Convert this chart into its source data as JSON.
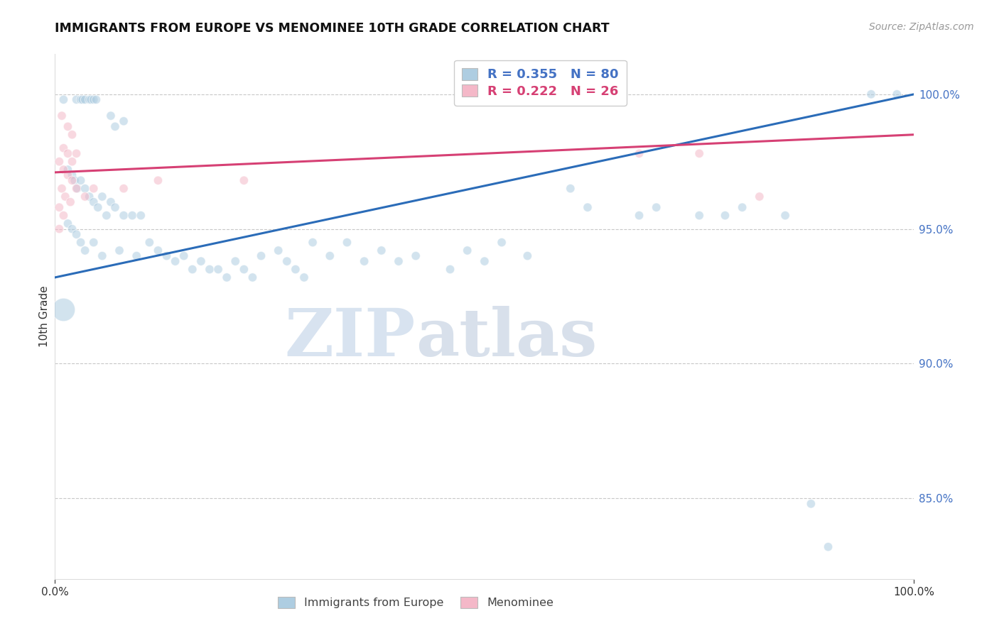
{
  "title": "IMMIGRANTS FROM EUROPE VS MENOMINEE 10TH GRADE CORRELATION CHART",
  "source_text": "Source: ZipAtlas.com",
  "ylabel": "10th Grade",
  "xmin": 0.0,
  "xmax": 100.0,
  "ymin": 82.0,
  "ymax": 101.5,
  "yticks": [
    85.0,
    90.0,
    95.0,
    100.0
  ],
  "ytick_labels": [
    "85.0%",
    "90.0%",
    "95.0%",
    "100.0%"
  ],
  "blue_color": "#aecde1",
  "pink_color": "#f4b8c8",
  "blue_line_color": "#2b6cb8",
  "pink_line_color": "#d64074",
  "blue_R": 0.355,
  "blue_N": 80,
  "pink_R": 0.222,
  "pink_N": 26,
  "watermark_zip": "ZIP",
  "watermark_atlas": "atlas",
  "legend_blue_label": "Immigrants from Europe",
  "legend_pink_label": "Menominee",
  "grid_color": "#c8c8c8",
  "tick_color": "#4472c4",
  "blue_trend_start_y": 93.2,
  "blue_trend_end_y": 100.0,
  "pink_trend_start_y": 97.1,
  "pink_trend_end_y": 98.5,
  "blue_points": [
    [
      1.0,
      99.8
    ],
    [
      2.5,
      99.8
    ],
    [
      3.0,
      99.8
    ],
    [
      3.2,
      99.8
    ],
    [
      3.5,
      99.8
    ],
    [
      4.0,
      99.8
    ],
    [
      4.2,
      99.8
    ],
    [
      4.5,
      99.8
    ],
    [
      4.8,
      99.8
    ],
    [
      6.5,
      99.2
    ],
    [
      7.0,
      98.8
    ],
    [
      8.0,
      99.0
    ],
    [
      1.5,
      97.2
    ],
    [
      2.0,
      97.0
    ],
    [
      2.3,
      96.8
    ],
    [
      2.6,
      96.5
    ],
    [
      3.0,
      96.8
    ],
    [
      3.5,
      96.5
    ],
    [
      4.0,
      96.2
    ],
    [
      4.5,
      96.0
    ],
    [
      5.0,
      95.8
    ],
    [
      5.5,
      96.2
    ],
    [
      6.0,
      95.5
    ],
    [
      6.5,
      96.0
    ],
    [
      7.0,
      95.8
    ],
    [
      8.0,
      95.5
    ],
    [
      9.0,
      95.5
    ],
    [
      10.0,
      95.5
    ],
    [
      1.5,
      95.2
    ],
    [
      2.0,
      95.0
    ],
    [
      2.5,
      94.8
    ],
    [
      3.0,
      94.5
    ],
    [
      3.5,
      94.2
    ],
    [
      4.5,
      94.5
    ],
    [
      5.5,
      94.0
    ],
    [
      7.5,
      94.2
    ],
    [
      9.5,
      94.0
    ],
    [
      11.0,
      94.5
    ],
    [
      12.0,
      94.2
    ],
    [
      13.0,
      94.0
    ],
    [
      14.0,
      93.8
    ],
    [
      15.0,
      94.0
    ],
    [
      16.0,
      93.5
    ],
    [
      17.0,
      93.8
    ],
    [
      18.0,
      93.5
    ],
    [
      19.0,
      93.5
    ],
    [
      20.0,
      93.2
    ],
    [
      21.0,
      93.8
    ],
    [
      22.0,
      93.5
    ],
    [
      23.0,
      93.2
    ],
    [
      24.0,
      94.0
    ],
    [
      26.0,
      94.2
    ],
    [
      27.0,
      93.8
    ],
    [
      28.0,
      93.5
    ],
    [
      29.0,
      93.2
    ],
    [
      30.0,
      94.5
    ],
    [
      32.0,
      94.0
    ],
    [
      34.0,
      94.5
    ],
    [
      36.0,
      93.8
    ],
    [
      38.0,
      94.2
    ],
    [
      40.0,
      93.8
    ],
    [
      42.0,
      94.0
    ],
    [
      46.0,
      93.5
    ],
    [
      48.0,
      94.2
    ],
    [
      50.0,
      93.8
    ],
    [
      52.0,
      94.5
    ],
    [
      55.0,
      94.0
    ],
    [
      60.0,
      96.5
    ],
    [
      62.0,
      95.8
    ],
    [
      68.0,
      95.5
    ],
    [
      70.0,
      95.8
    ],
    [
      75.0,
      95.5
    ],
    [
      78.0,
      95.5
    ],
    [
      80.0,
      95.8
    ],
    [
      85.0,
      95.5
    ],
    [
      88.0,
      84.8
    ],
    [
      90.0,
      83.2
    ],
    [
      95.0,
      100.0
    ],
    [
      98.0,
      100.0
    ],
    [
      1.0,
      92.0
    ]
  ],
  "blue_sizes": [
    80,
    80,
    80,
    80,
    80,
    80,
    80,
    80,
    80,
    80,
    80,
    80,
    80,
    80,
    80,
    80,
    80,
    80,
    80,
    80,
    80,
    80,
    80,
    80,
    80,
    80,
    80,
    80,
    80,
    80,
    80,
    80,
    80,
    80,
    80,
    80,
    80,
    80,
    80,
    80,
    80,
    80,
    80,
    80,
    80,
    80,
    80,
    80,
    80,
    80,
    80,
    80,
    80,
    80,
    80,
    80,
    80,
    80,
    80,
    80,
    80,
    80,
    80,
    80,
    80,
    80,
    80,
    80,
    80,
    80,
    80,
    80,
    80,
    80,
    80,
    80,
    80,
    80,
    80,
    550
  ],
  "pink_points": [
    [
      0.8,
      99.2
    ],
    [
      1.5,
      98.8
    ],
    [
      2.0,
      98.5
    ],
    [
      1.0,
      98.0
    ],
    [
      1.5,
      97.8
    ],
    [
      2.0,
      97.5
    ],
    [
      2.5,
      97.8
    ],
    [
      0.5,
      97.5
    ],
    [
      1.0,
      97.2
    ],
    [
      1.5,
      97.0
    ],
    [
      2.0,
      96.8
    ],
    [
      0.8,
      96.5
    ],
    [
      1.2,
      96.2
    ],
    [
      1.8,
      96.0
    ],
    [
      0.5,
      95.8
    ],
    [
      1.0,
      95.5
    ],
    [
      2.5,
      96.5
    ],
    [
      3.5,
      96.2
    ],
    [
      4.5,
      96.5
    ],
    [
      8.0,
      96.5
    ],
    [
      12.0,
      96.8
    ],
    [
      22.0,
      96.8
    ],
    [
      68.0,
      97.8
    ],
    [
      75.0,
      97.8
    ],
    [
      82.0,
      96.2
    ],
    [
      0.5,
      95.0
    ]
  ],
  "pink_sizes": [
    80,
    80,
    80,
    80,
    80,
    80,
    80,
    80,
    80,
    80,
    80,
    80,
    80,
    80,
    80,
    80,
    80,
    80,
    80,
    80,
    80,
    80,
    80,
    80,
    80,
    80
  ]
}
